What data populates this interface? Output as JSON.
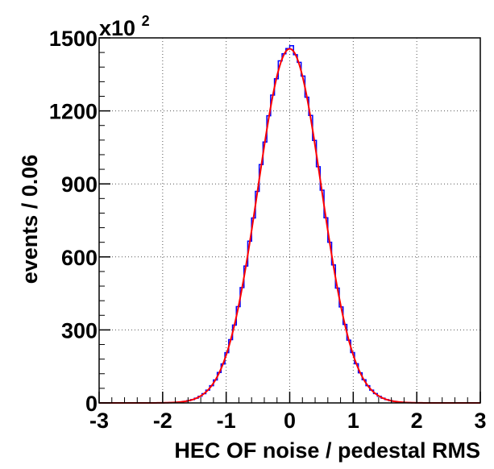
{
  "chart_data": {
    "type": "histogram",
    "title": "",
    "xlabel": "HEC OF noise / pedestal RMS",
    "ylabel": "events / 0.06",
    "y_multiplier": "x10",
    "y_multiplier_exp": "2",
    "xlim": [
      -3,
      3
    ],
    "ylim": [
      0,
      1500
    ],
    "x_ticks": [
      -3,
      -2,
      -1,
      0,
      1,
      2,
      3
    ],
    "x_tick_labels": [
      "-3",
      "-2",
      "-1",
      "0",
      "1",
      "2",
      "3"
    ],
    "y_ticks": [
      0,
      300,
      600,
      900,
      1200,
      1500
    ],
    "y_tick_labels": [
      "0",
      "300",
      "600",
      "900",
      "1200",
      "1500"
    ],
    "grid": true,
    "bin_width": 0.06,
    "series": [
      {
        "kind": "histogram",
        "color": "#0000ff",
        "gaussian": {
          "amplitude": 1462,
          "mean": 0.0,
          "sigma": 0.5
        }
      },
      {
        "kind": "fit",
        "color": "#ff0000",
        "gaussian": {
          "amplitude": 1455,
          "mean": 0.0,
          "sigma": 0.5
        }
      }
    ]
  }
}
